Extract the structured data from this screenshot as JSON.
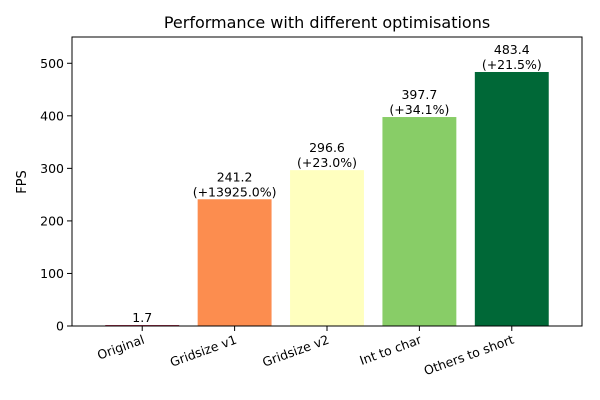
{
  "chart_data": {
    "type": "bar",
    "title": "Performance with different optimisations",
    "xlabel": "",
    "ylabel": "FPS",
    "ylim": [
      0,
      550
    ],
    "yticks": [
      0,
      100,
      200,
      300,
      400,
      500
    ],
    "grid": false,
    "categories": [
      "Original",
      "Gridsize v1",
      "Gridsize v2",
      "Int to char",
      "Others to short"
    ],
    "values": [
      1.7,
      241.2,
      296.6,
      397.7,
      483.4
    ],
    "value_labels": [
      "1.7",
      "241.2",
      "296.6",
      "397.7",
      "483.4"
    ],
    "change_labels": [
      "",
      "(+13925.0%)",
      "(+23.0%)",
      "(+34.1%)",
      "(+21.5%)"
    ],
    "colors": [
      "#a50026",
      "#fc8d4f",
      "#ffffbf",
      "#88cd67",
      "#006837"
    ]
  }
}
